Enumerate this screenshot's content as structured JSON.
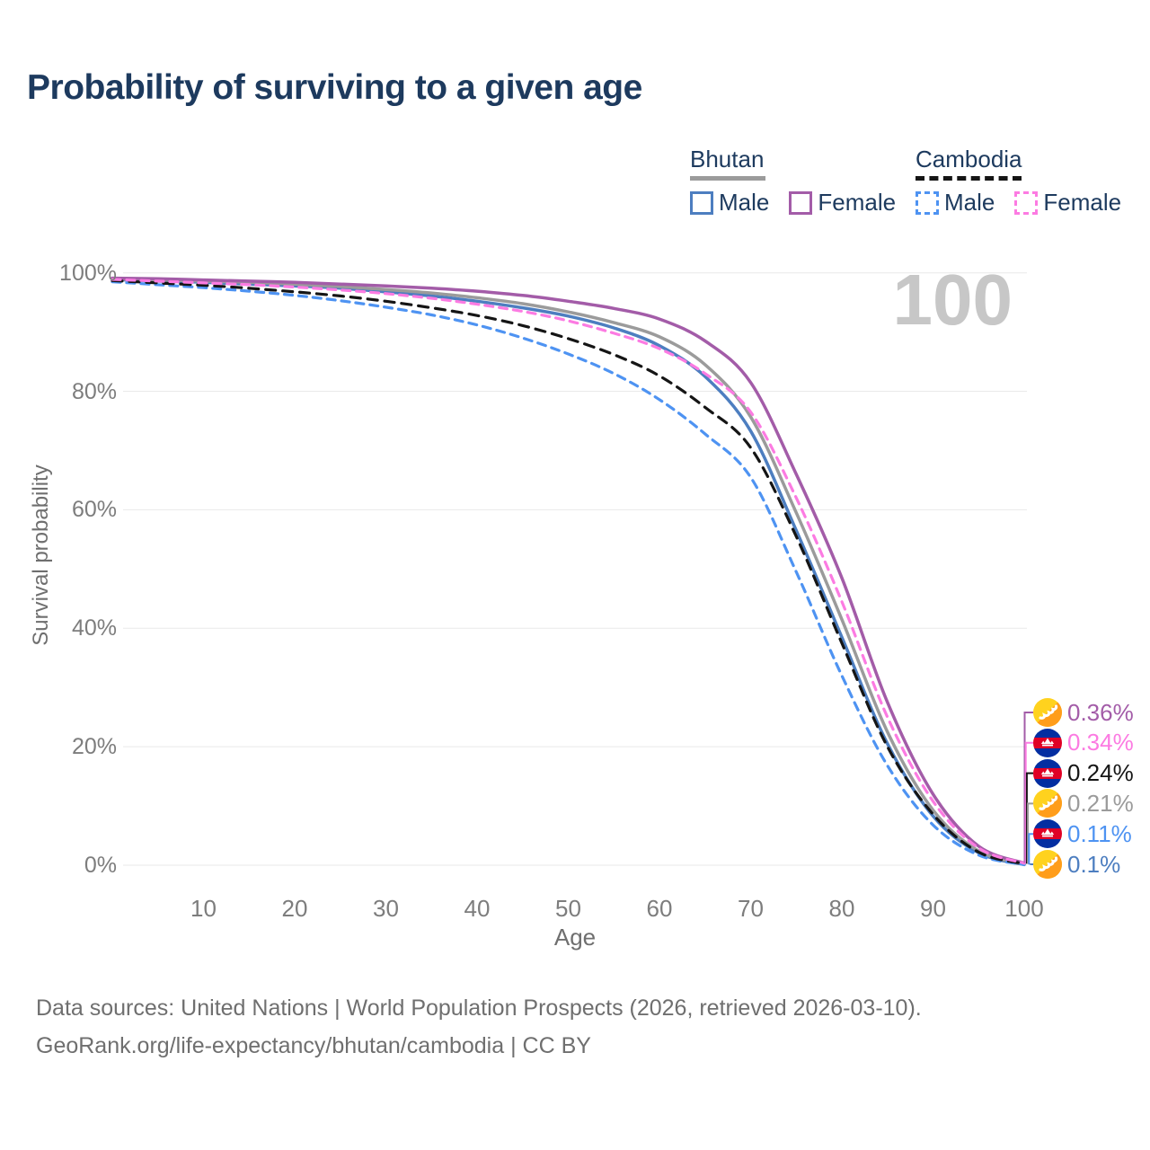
{
  "title": "Probability of surviving to a given age",
  "watermark": "100",
  "legend": {
    "groups": [
      {
        "name": "Bhutan",
        "color": "#9b9b9b",
        "style": "solid",
        "items": [
          {
            "label": "Male",
            "color": "#4d7ec0"
          },
          {
            "label": "Female",
            "color": "#a35ca8"
          }
        ]
      },
      {
        "name": "Cambodia",
        "color": "#151515",
        "style": "dashed",
        "items": [
          {
            "label": "Male",
            "color": "#4e93f2"
          },
          {
            "label": "Female",
            "color": "#fc7be2"
          }
        ]
      }
    ]
  },
  "chart_data": {
    "type": "line",
    "title": "Probability of surviving to a given age",
    "xlabel": "Age",
    "ylabel": "Survival probability",
    "xlim": [
      0,
      100
    ],
    "ylim": [
      0,
      100
    ],
    "grid": "horizontal",
    "legend_position": "top-right",
    "x_ticks": [
      10,
      20,
      30,
      40,
      50,
      60,
      70,
      80,
      90,
      100
    ],
    "y_ticks": [
      "0%",
      "20%",
      "40%",
      "60%",
      "80%",
      "100%"
    ],
    "y_tick_values": [
      0,
      20,
      40,
      60,
      80,
      100
    ],
    "x": [
      0,
      5,
      10,
      15,
      20,
      25,
      30,
      35,
      40,
      45,
      50,
      55,
      60,
      65,
      70,
      75,
      80,
      85,
      90,
      95,
      100
    ],
    "series": [
      {
        "name": "Bhutan Male",
        "country": "Bhutan",
        "flag": "bhutan",
        "line": "solid",
        "color": "#4d7ec0",
        "end_label": "0.1%",
        "values": [
          98.9,
          98.6,
          98.4,
          98.1,
          97.8,
          97.4,
          96.8,
          96.1,
          95.2,
          94.1,
          92.7,
          90.7,
          87.7,
          82.5,
          73.3,
          56.5,
          38.5,
          20.5,
          8.3,
          2.1,
          0.1
        ]
      },
      {
        "name": "Bhutan",
        "country": "Bhutan",
        "flag": "bhutan",
        "line": "solid",
        "color": "#9b9b9b",
        "end_label": "0.21%",
        "values": [
          99.0,
          98.8,
          98.6,
          98.4,
          98.1,
          97.7,
          97.2,
          96.6,
          95.8,
          94.8,
          93.4,
          91.6,
          89.2,
          84.5,
          75.7,
          59.5,
          41.5,
          22.5,
          9.3,
          2.4,
          0.21
        ]
      },
      {
        "name": "Bhutan Female",
        "country": "Bhutan",
        "flag": "bhutan",
        "line": "solid",
        "color": "#a35ca8",
        "end_label": "0.36%",
        "values": [
          99.1,
          99.0,
          98.8,
          98.6,
          98.4,
          98.1,
          97.8,
          97.4,
          96.9,
          96.2,
          95.2,
          94.0,
          92.2,
          88.5,
          81.5,
          66.0,
          48.5,
          27.5,
          12.0,
          3.2,
          0.36
        ]
      },
      {
        "name": "Cambodia Male",
        "country": "Cambodia",
        "flag": "cambodia",
        "line": "dashed",
        "color": "#4e93f2",
        "end_label": "0.11%",
        "values": [
          98.5,
          98.0,
          97.5,
          96.9,
          96.2,
          95.3,
          94.2,
          92.9,
          91.2,
          89.0,
          86.3,
          83.0,
          78.6,
          72.8,
          65.5,
          49.5,
          32.0,
          16.8,
          6.8,
          1.7,
          0.11
        ]
      },
      {
        "name": "Cambodia",
        "country": "Cambodia",
        "flag": "cambodia",
        "line": "dashed",
        "color": "#151515",
        "end_label": "0.24%",
        "values": [
          98.7,
          98.3,
          97.9,
          97.4,
          96.8,
          96.1,
          95.2,
          94.1,
          92.8,
          91.1,
          88.9,
          86.2,
          82.6,
          77.3,
          70.5,
          55.5,
          37.5,
          20.0,
          8.6,
          2.2,
          0.24
        ]
      },
      {
        "name": "Cambodia Female",
        "country": "Cambodia",
        "flag": "cambodia",
        "line": "dashed",
        "color": "#fc7be2",
        "end_label": "0.34%",
        "values": [
          98.9,
          98.6,
          98.3,
          98.0,
          97.6,
          97.1,
          96.5,
          95.7,
          94.7,
          93.5,
          91.9,
          89.8,
          87.2,
          83.0,
          76.5,
          62.0,
          44.5,
          25.0,
          10.8,
          2.9,
          0.34
        ]
      }
    ]
  },
  "flag_colors": {
    "bhutan_yellow": "#ffd21e",
    "bhutan_orange": "#ff9d1b",
    "cambodia_blue": "#032ea1",
    "cambodia_red": "#e00025"
  },
  "footer": {
    "line1": "Data sources: United Nations | World Population Prospects (2026, retrieved 2026-03-10).",
    "line2": "GeoRank.org/life-expectancy/bhutan/cambodia | CC BY"
  }
}
